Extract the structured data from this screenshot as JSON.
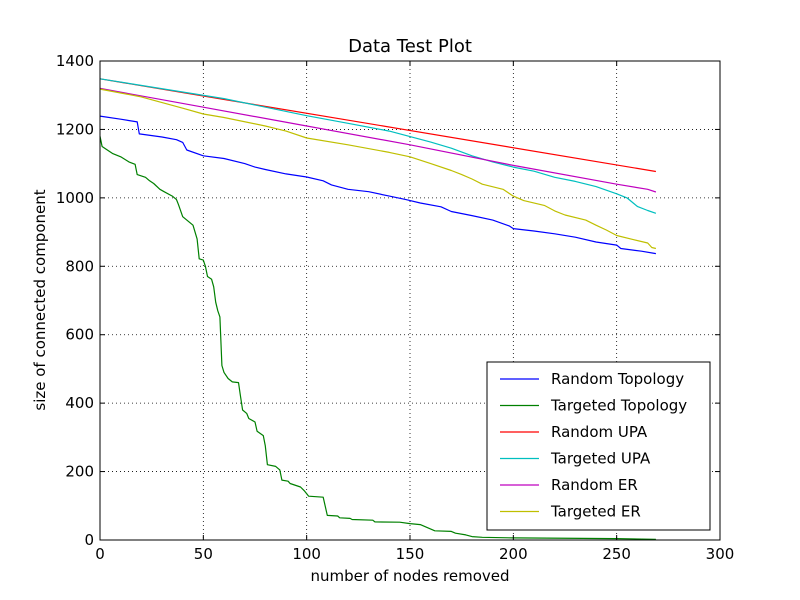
{
  "chart_data": {
    "type": "line",
    "title": "Data Test Plot",
    "xlabel": "number of nodes removed",
    "ylabel": "size of connected component",
    "xlim": [
      0,
      300
    ],
    "ylim": [
      0,
      1400
    ],
    "xticks": [
      0,
      50,
      100,
      150,
      200,
      250,
      300
    ],
    "yticks": [
      0,
      200,
      400,
      600,
      800,
      1000,
      1200,
      1400
    ],
    "grid": true,
    "legend_position": "lower-right",
    "series": [
      {
        "name": "Random Topology",
        "color": "#0000ff",
        "points": [
          [
            0,
            1239
          ],
          [
            10,
            1230
          ],
          [
            18,
            1222
          ],
          [
            19,
            1187
          ],
          [
            30,
            1178
          ],
          [
            37,
            1170
          ],
          [
            40,
            1162
          ],
          [
            42,
            1140
          ],
          [
            50,
            1123
          ],
          [
            60,
            1115
          ],
          [
            70,
            1100
          ],
          [
            75,
            1090
          ],
          [
            80,
            1083
          ],
          [
            90,
            1070
          ],
          [
            100,
            1061
          ],
          [
            108,
            1050
          ],
          [
            112,
            1038
          ],
          [
            120,
            1025
          ],
          [
            130,
            1018
          ],
          [
            140,
            1005
          ],
          [
            148,
            995
          ],
          [
            155,
            985
          ],
          [
            165,
            974
          ],
          [
            170,
            960
          ],
          [
            180,
            948
          ],
          [
            190,
            935
          ],
          [
            198,
            918
          ],
          [
            200,
            910
          ],
          [
            210,
            903
          ],
          [
            220,
            895
          ],
          [
            230,
            885
          ],
          [
            240,
            871
          ],
          [
            250,
            862
          ],
          [
            252,
            852
          ],
          [
            262,
            844
          ],
          [
            269,
            837
          ]
        ]
      },
      {
        "name": "Targeted Topology",
        "color": "#008000",
        "points": [
          [
            0,
            1180
          ],
          [
            1,
            1150
          ],
          [
            3,
            1142
          ],
          [
            6,
            1130
          ],
          [
            10,
            1120
          ],
          [
            14,
            1105
          ],
          [
            17,
            1098
          ],
          [
            18,
            1068
          ],
          [
            22,
            1060
          ],
          [
            24,
            1050
          ],
          [
            26,
            1042
          ],
          [
            29,
            1025
          ],
          [
            31,
            1018
          ],
          [
            35,
            1005
          ],
          [
            37,
            995
          ],
          [
            38,
            980
          ],
          [
            40,
            945
          ],
          [
            42,
            935
          ],
          [
            45,
            920
          ],
          [
            47,
            880
          ],
          [
            48,
            822
          ],
          [
            50,
            818
          ],
          [
            51,
            800
          ],
          [
            52,
            770
          ],
          [
            54,
            762
          ],
          [
            55,
            740
          ],
          [
            56,
            695
          ],
          [
            57,
            670
          ],
          [
            58,
            652
          ],
          [
            59,
            510
          ],
          [
            60,
            490
          ],
          [
            62,
            472
          ],
          [
            64,
            462
          ],
          [
            67,
            460
          ],
          [
            68,
            420
          ],
          [
            69,
            380
          ],
          [
            71,
            370
          ],
          [
            72,
            355
          ],
          [
            75,
            345
          ],
          [
            76,
            318
          ],
          [
            79,
            305
          ],
          [
            80,
            275
          ],
          [
            81,
            220
          ],
          [
            85,
            215
          ],
          [
            87,
            205
          ],
          [
            88,
            175
          ],
          [
            91,
            172
          ],
          [
            92,
            165
          ],
          [
            97,
            155
          ],
          [
            99,
            143
          ],
          [
            101,
            128
          ],
          [
            108,
            125
          ],
          [
            110,
            72
          ],
          [
            115,
            70
          ],
          [
            116,
            65
          ],
          [
            121,
            63
          ],
          [
            122,
            60
          ],
          [
            132,
            58
          ],
          [
            133,
            53
          ],
          [
            145,
            52
          ],
          [
            150,
            48
          ],
          [
            155,
            45
          ],
          [
            162,
            27
          ],
          [
            170,
            25
          ],
          [
            172,
            20
          ],
          [
            177,
            15
          ],
          [
            180,
            10
          ],
          [
            185,
            8
          ],
          [
            200,
            6
          ],
          [
            250,
            4
          ],
          [
            269,
            2
          ]
        ]
      },
      {
        "name": "Random UPA",
        "color": "#ff0000",
        "points": [
          [
            0,
            1348
          ],
          [
            269,
            1077
          ]
        ]
      },
      {
        "name": "Targeted UPA",
        "color": "#00bfbf",
        "points": [
          [
            0,
            1348
          ],
          [
            60,
            1290
          ],
          [
            100,
            1240
          ],
          [
            120,
            1218
          ],
          [
            140,
            1195
          ],
          [
            160,
            1163
          ],
          [
            170,
            1145
          ],
          [
            180,
            1123
          ],
          [
            190,
            1105
          ],
          [
            200,
            1090
          ],
          [
            210,
            1078
          ],
          [
            220,
            1060
          ],
          [
            230,
            1048
          ],
          [
            240,
            1033
          ],
          [
            250,
            1012
          ],
          [
            255,
            1000
          ],
          [
            260,
            975
          ],
          [
            265,
            963
          ],
          [
            269,
            955
          ]
        ]
      },
      {
        "name": "Random ER",
        "color": "#bf00bf",
        "points": [
          [
            0,
            1320
          ],
          [
            50,
            1265
          ],
          [
            100,
            1210
          ],
          [
            150,
            1155
          ],
          [
            200,
            1095
          ],
          [
            250,
            1040
          ],
          [
            265,
            1025
          ],
          [
            269,
            1017
          ]
        ]
      },
      {
        "name": "Targeted ER",
        "color": "#bfbf00",
        "points": [
          [
            0,
            1318
          ],
          [
            20,
            1295
          ],
          [
            40,
            1262
          ],
          [
            50,
            1245
          ],
          [
            60,
            1235
          ],
          [
            80,
            1210
          ],
          [
            90,
            1195
          ],
          [
            100,
            1175
          ],
          [
            120,
            1155
          ],
          [
            140,
            1133
          ],
          [
            150,
            1120
          ],
          [
            160,
            1100
          ],
          [
            170,
            1080
          ],
          [
            175,
            1068
          ],
          [
            180,
            1055
          ],
          [
            185,
            1040
          ],
          [
            195,
            1025
          ],
          [
            200,
            1005
          ],
          [
            205,
            992
          ],
          [
            215,
            978
          ],
          [
            220,
            962
          ],
          [
            225,
            950
          ],
          [
            235,
            935
          ],
          [
            240,
            920
          ],
          [
            245,
            906
          ],
          [
            250,
            890
          ],
          [
            258,
            878
          ],
          [
            265,
            868
          ],
          [
            267,
            855
          ],
          [
            269,
            852
          ]
        ]
      }
    ]
  }
}
